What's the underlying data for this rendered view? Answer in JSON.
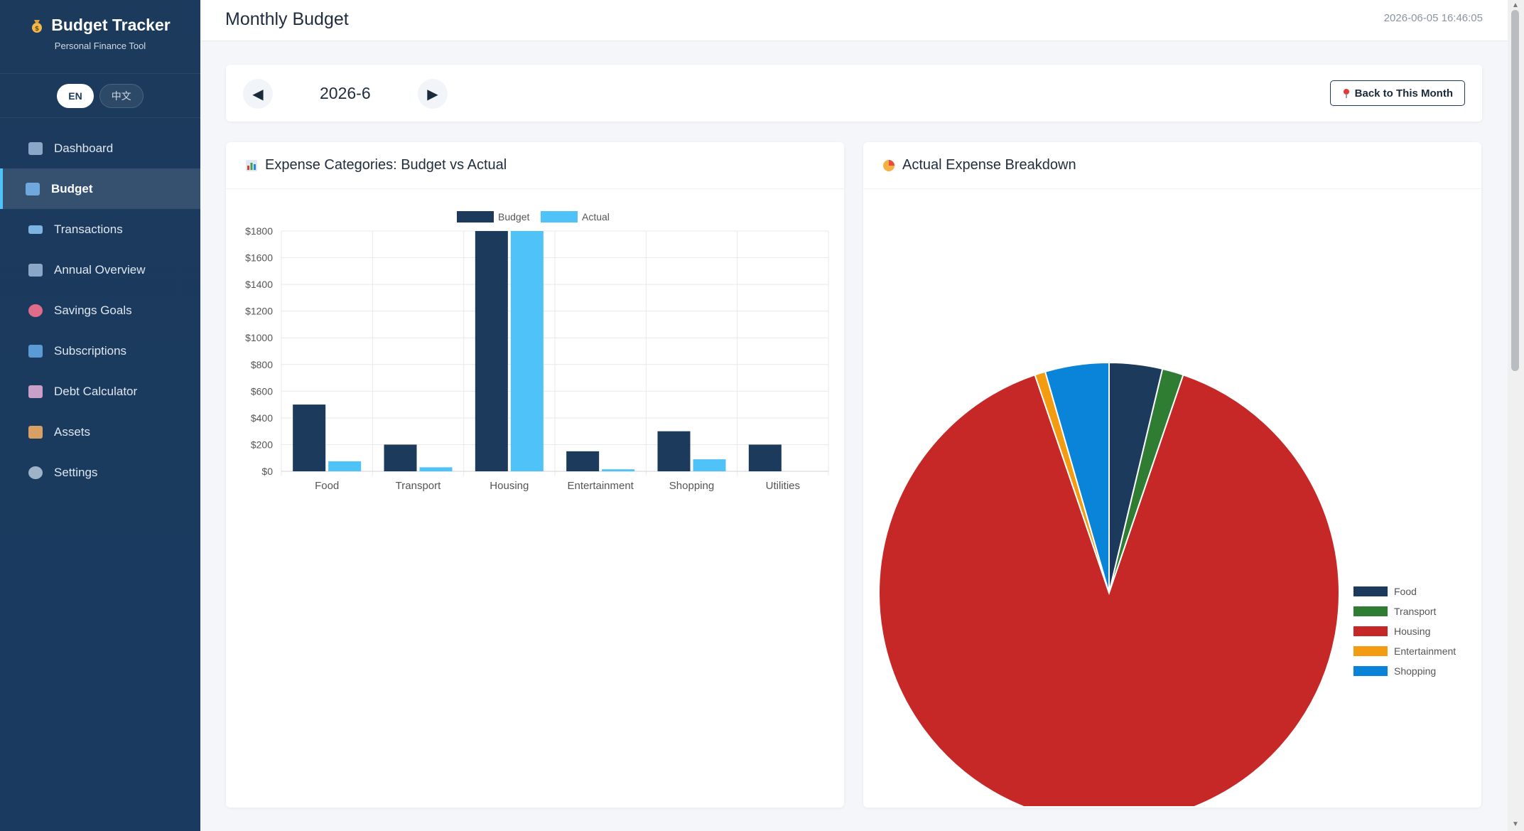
{
  "sidebar": {
    "brand_title": "Budget Tracker",
    "brand_subtitle": "Personal Finance Tool",
    "brand_icon": "money-bag-icon",
    "languages": [
      {
        "label": "EN",
        "active": true
      },
      {
        "label": "中文",
        "active": false
      }
    ],
    "items": [
      {
        "label": "Dashboard",
        "icon": "chart-icon",
        "color": "#8aa7c8",
        "active": false
      },
      {
        "label": "Budget",
        "icon": "calendar-icon",
        "color": "#6fa8dc",
        "active": true
      },
      {
        "label": "Transactions",
        "icon": "card-icon",
        "color": "#7cb3e0",
        "active": false
      },
      {
        "label": "Annual Overview",
        "icon": "trend-icon",
        "color": "#8aa7c8",
        "active": false
      },
      {
        "label": "Savings Goals",
        "icon": "target-icon",
        "color": "#e06c8c",
        "active": false
      },
      {
        "label": "Subscriptions",
        "icon": "refresh-icon",
        "color": "#5b9bd5",
        "active": false
      },
      {
        "label": "Debt Calculator",
        "icon": "down-chart-icon",
        "color": "#c8a0c8",
        "active": false
      },
      {
        "label": "Assets",
        "icon": "house-icon",
        "color": "#d9a066",
        "active": false
      },
      {
        "label": "Settings",
        "icon": "gear-icon",
        "color": "#9fb3c8",
        "active": false
      }
    ]
  },
  "header": {
    "title": "Monthly Budget",
    "timestamp": "2026-06-05 16:46:05"
  },
  "month_bar": {
    "prev_icon": "prev-arrow-icon",
    "next_icon": "next-arrow-icon",
    "month": "2026-6",
    "back_label": "Back to This Month",
    "back_icon": "pin-icon"
  },
  "bar_card": {
    "title": "Expense Categories: Budget vs Actual",
    "icon": "bar-chart-icon"
  },
  "pie_card": {
    "title": "Actual Expense Breakdown",
    "icon": "pie-icon"
  },
  "chart_data": [
    {
      "type": "bar",
      "categories": [
        "Food",
        "Transport",
        "Housing",
        "Entertainment",
        "Shopping",
        "Utilities"
      ],
      "series": [
        {
          "name": "Budget",
          "color": "#1b3a5c",
          "values": [
            500,
            200,
            1800,
            150,
            300,
            200
          ]
        },
        {
          "name": "Actual",
          "color": "#4fc3f7",
          "values": [
            75,
            30,
            1800,
            15,
            90,
            0
          ]
        }
      ],
      "ylim": [
        0,
        1800
      ],
      "yticks": [
        "$0",
        "$200",
        "$400",
        "$600",
        "$800",
        "$1000",
        "$1200",
        "$1400",
        "$1600",
        "$1800"
      ],
      "legend_position": "top",
      "grid": true
    },
    {
      "type": "pie",
      "labels": [
        "Food",
        "Transport",
        "Housing",
        "Entertainment",
        "Shopping"
      ],
      "values": [
        75,
        30,
        1800,
        15,
        90
      ],
      "colors": [
        "#1b3a5c",
        "#2e7d32",
        "#c62828",
        "#f39c12",
        "#0984d8"
      ],
      "legend_position": "right"
    }
  ],
  "scrollbar": {
    "up": "▲",
    "down": "▼"
  }
}
